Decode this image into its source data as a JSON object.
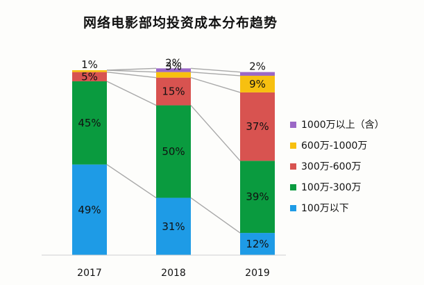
{
  "chart_data": {
    "type": "bar",
    "stacked": "percent",
    "title": "网络电影部均投资成本分布趋势",
    "categories": [
      "2017",
      "2018",
      "2019"
    ],
    "series": [
      {
        "name": "100万以下",
        "values": [
          49,
          31,
          12
        ],
        "color": "#1e9be6"
      },
      {
        "name": "100万-300万",
        "values": [
          45,
          50,
          39
        ],
        "color": "#0a9b3f"
      },
      {
        "name": "300万-600万",
        "values": [
          5,
          15,
          37
        ],
        "color": "#d85350"
      },
      {
        "name": "600万-1000万",
        "values": [
          1,
          3,
          9
        ],
        "color": "#f7c010"
      },
      {
        "name": "1000万以上（含）",
        "values": [
          0,
          2,
          2
        ],
        "color": "#9b68c6"
      }
    ],
    "data_labels": [
      [
        "49%",
        "31%",
        "12%"
      ],
      [
        "45%",
        "50%",
        "39%"
      ],
      [
        "5%",
        "15%",
        "37%"
      ],
      [
        "1%",
        "3%",
        "9%"
      ],
      [
        "",
        "2%",
        "2%"
      ]
    ],
    "ylim": [
      0,
      100
    ],
    "legend_position": "right",
    "grid": false,
    "connector_lines": true
  }
}
